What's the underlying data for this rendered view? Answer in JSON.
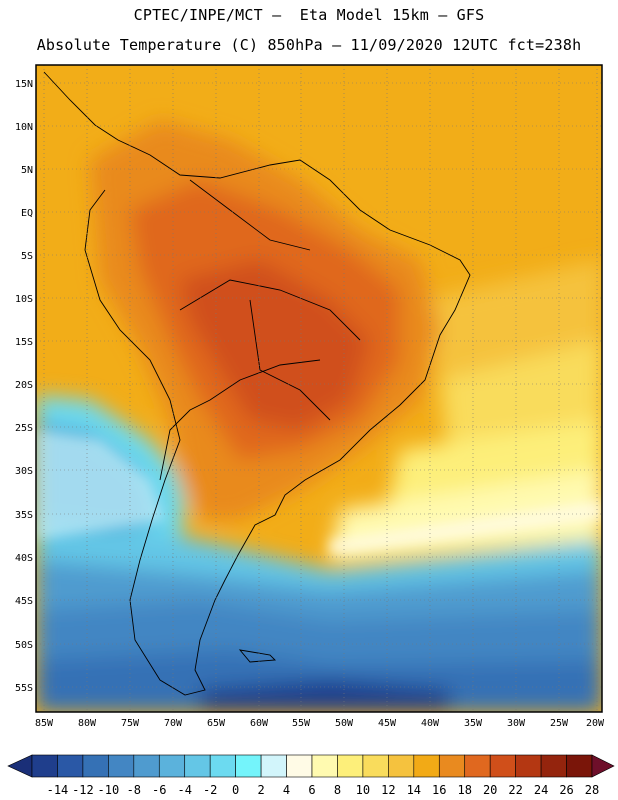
{
  "header": {
    "title_line1": "CPTEC/INPE/MCT –  Eta Model 15km – GFS",
    "title_line2": "Absolute Temperature (C) 850hPa – 11/09/2020 12UTC fct=238h"
  },
  "map": {
    "lat_labels": [
      "15N",
      "10N",
      "5N",
      "EQ",
      "5S",
      "10S",
      "15S",
      "20S",
      "25S",
      "30S",
      "35S",
      "40S",
      "45S",
      "50S",
      "55S"
    ],
    "lon_labels": [
      "85W",
      "80W",
      "75W",
      "70W",
      "65W",
      "60W",
      "55W",
      "50W",
      "45W",
      "40W",
      "35W",
      "30W",
      "25W",
      "20W"
    ]
  },
  "colorbar": {
    "labels": [
      "-14",
      "-12",
      "-10",
      "-8",
      "-6",
      "-4",
      "-2",
      "0",
      "2",
      "4",
      "6",
      "8",
      "10",
      "12",
      "14",
      "16",
      "18",
      "20",
      "22",
      "24",
      "26",
      "28"
    ],
    "colors": [
      "#1f3e8c",
      "#2a58a6",
      "#3571b5",
      "#4386c3",
      "#4f9bcf",
      "#5bb2dc",
      "#64c6e6",
      "#6cdaf0",
      "#74f4fb",
      "#d2f5fb",
      "#fffbe6",
      "#fffab0",
      "#fdef7a",
      "#f9dc5c",
      "#f5c23e",
      "#f2aa16",
      "#e98a1f",
      "#e0681f",
      "#d04f1a",
      "#b43712",
      "#94240d",
      "#7a1509"
    ],
    "under_color": "#1a2f78",
    "over_color": "#6e0f2a"
  }
}
